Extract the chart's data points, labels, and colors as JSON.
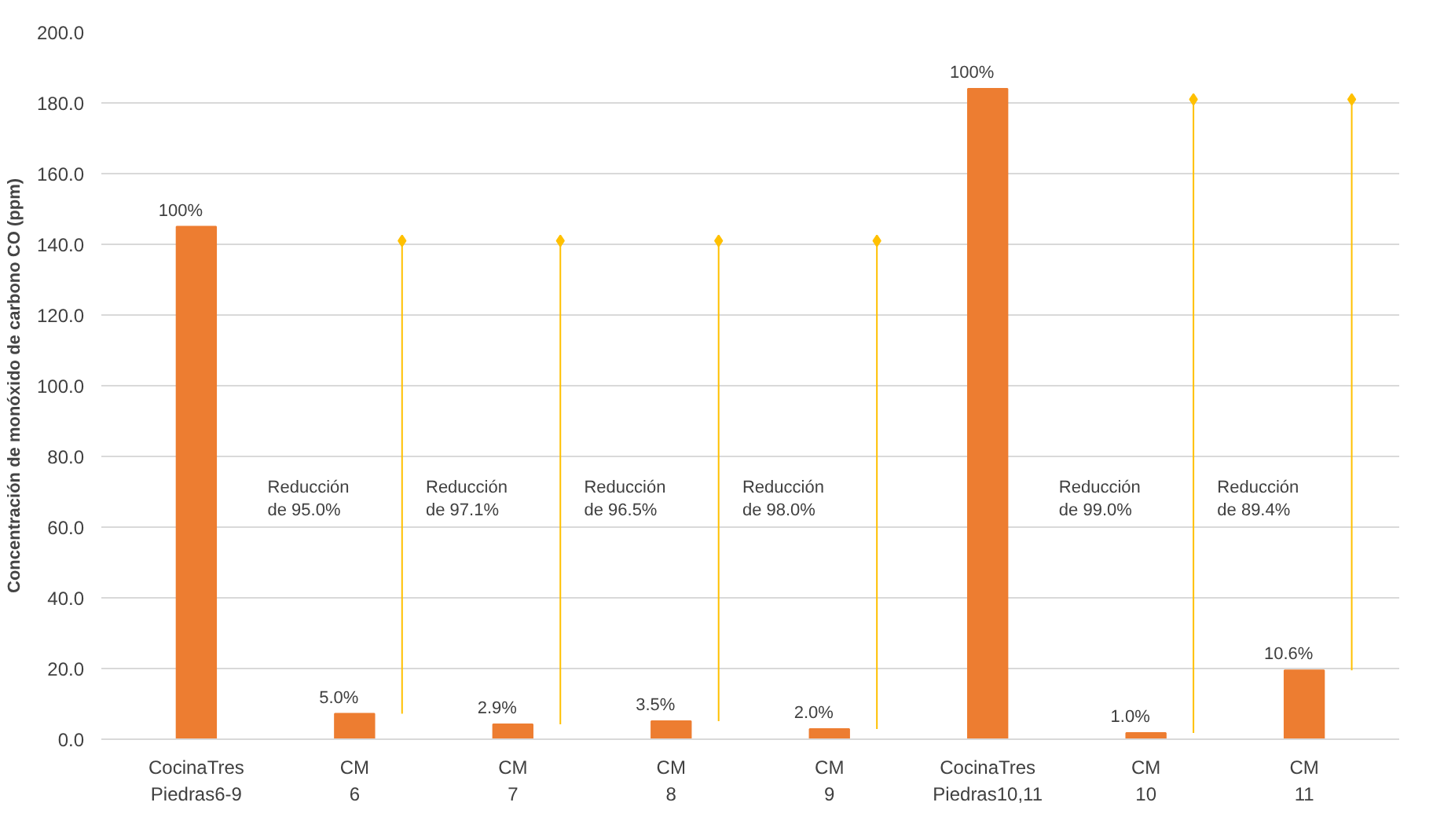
{
  "chart_data": {
    "type": "bar",
    "ylabel": "Concentración de monóxido de carbono CO (ppm)",
    "categories": [
      "CocinaTres\nPiedras6-9",
      "CM\n6",
      "CM\n7",
      "CM\n8",
      "CM\n9",
      "CocinaTres\nPiedras10,11",
      "CM\n10",
      "CM\n11"
    ],
    "series": [
      {
        "type": "bar",
        "color": "#ed7d31",
        "values": [
          145,
          7.2,
          4.2,
          5.1,
          2.9,
          184,
          1.8,
          19.5
        ]
      },
      {
        "type": "scatter",
        "color": "#ffc000",
        "marker": "diamond",
        "values": [
          null,
          141,
          141,
          141,
          141,
          null,
          181,
          181
        ],
        "errors": [
          null,
          [
            7.2,
            141
          ],
          [
            4.2,
            141
          ],
          [
            5.1,
            141
          ],
          [
            2.9,
            141
          ],
          null,
          [
            1.8,
            181
          ],
          [
            19.5,
            181
          ]
        ]
      }
    ],
    "annotations": [
      {
        "text": "100%",
        "x": "CocinaTres\nPiedras6-9",
        "y": 145
      },
      {
        "text": "5.0%",
        "x": "CM\n6",
        "y": 7.2
      },
      {
        "text": "2.9%",
        "x": "CM\n7",
        "y": 4.2
      },
      {
        "text": "3.5%",
        "x": "CM\n8",
        "y": 5.1
      },
      {
        "text": "2.0%",
        "x": "CM\n9",
        "y": 2.9
      },
      {
        "text": "100%",
        "x": "CocinaTres\nPiedras10,11",
        "y": 184
      },
      {
        "text": "1.0%",
        "x": "CM\n10",
        "y": 1.8
      },
      {
        "text": "10.6%",
        "x": "CM\n11",
        "y": 19.5
      },
      "Reducción\nde 95.0%",
      "Reducción\nde 97.1%",
      "Reducción\nde 96.5%",
      "Reducción\nde 98.0%",
      "Reducción\nde 99.0%",
      "Reducción\nde 89.4%"
    ],
    "ylim": [
      0,
      200
    ],
    "yticks": [
      {
        "value": 0,
        "label": "0.0"
      },
      {
        "value": 20,
        "label": "20.0"
      },
      {
        "value": 40,
        "label": "40.0"
      },
      {
        "value": 60,
        "label": "60.0"
      },
      {
        "value": 80,
        "label": "80.0"
      },
      {
        "value": 100,
        "label": "100.0"
      },
      {
        "value": 120,
        "label": "120.0"
      },
      {
        "value": 140,
        "label": "140.0"
      },
      {
        "value": 160,
        "label": "160.0"
      },
      {
        "value": 180,
        "label": "180.0"
      },
      {
        "value": 200,
        "label": "200.0"
      }
    ],
    "grid": "y"
  }
}
